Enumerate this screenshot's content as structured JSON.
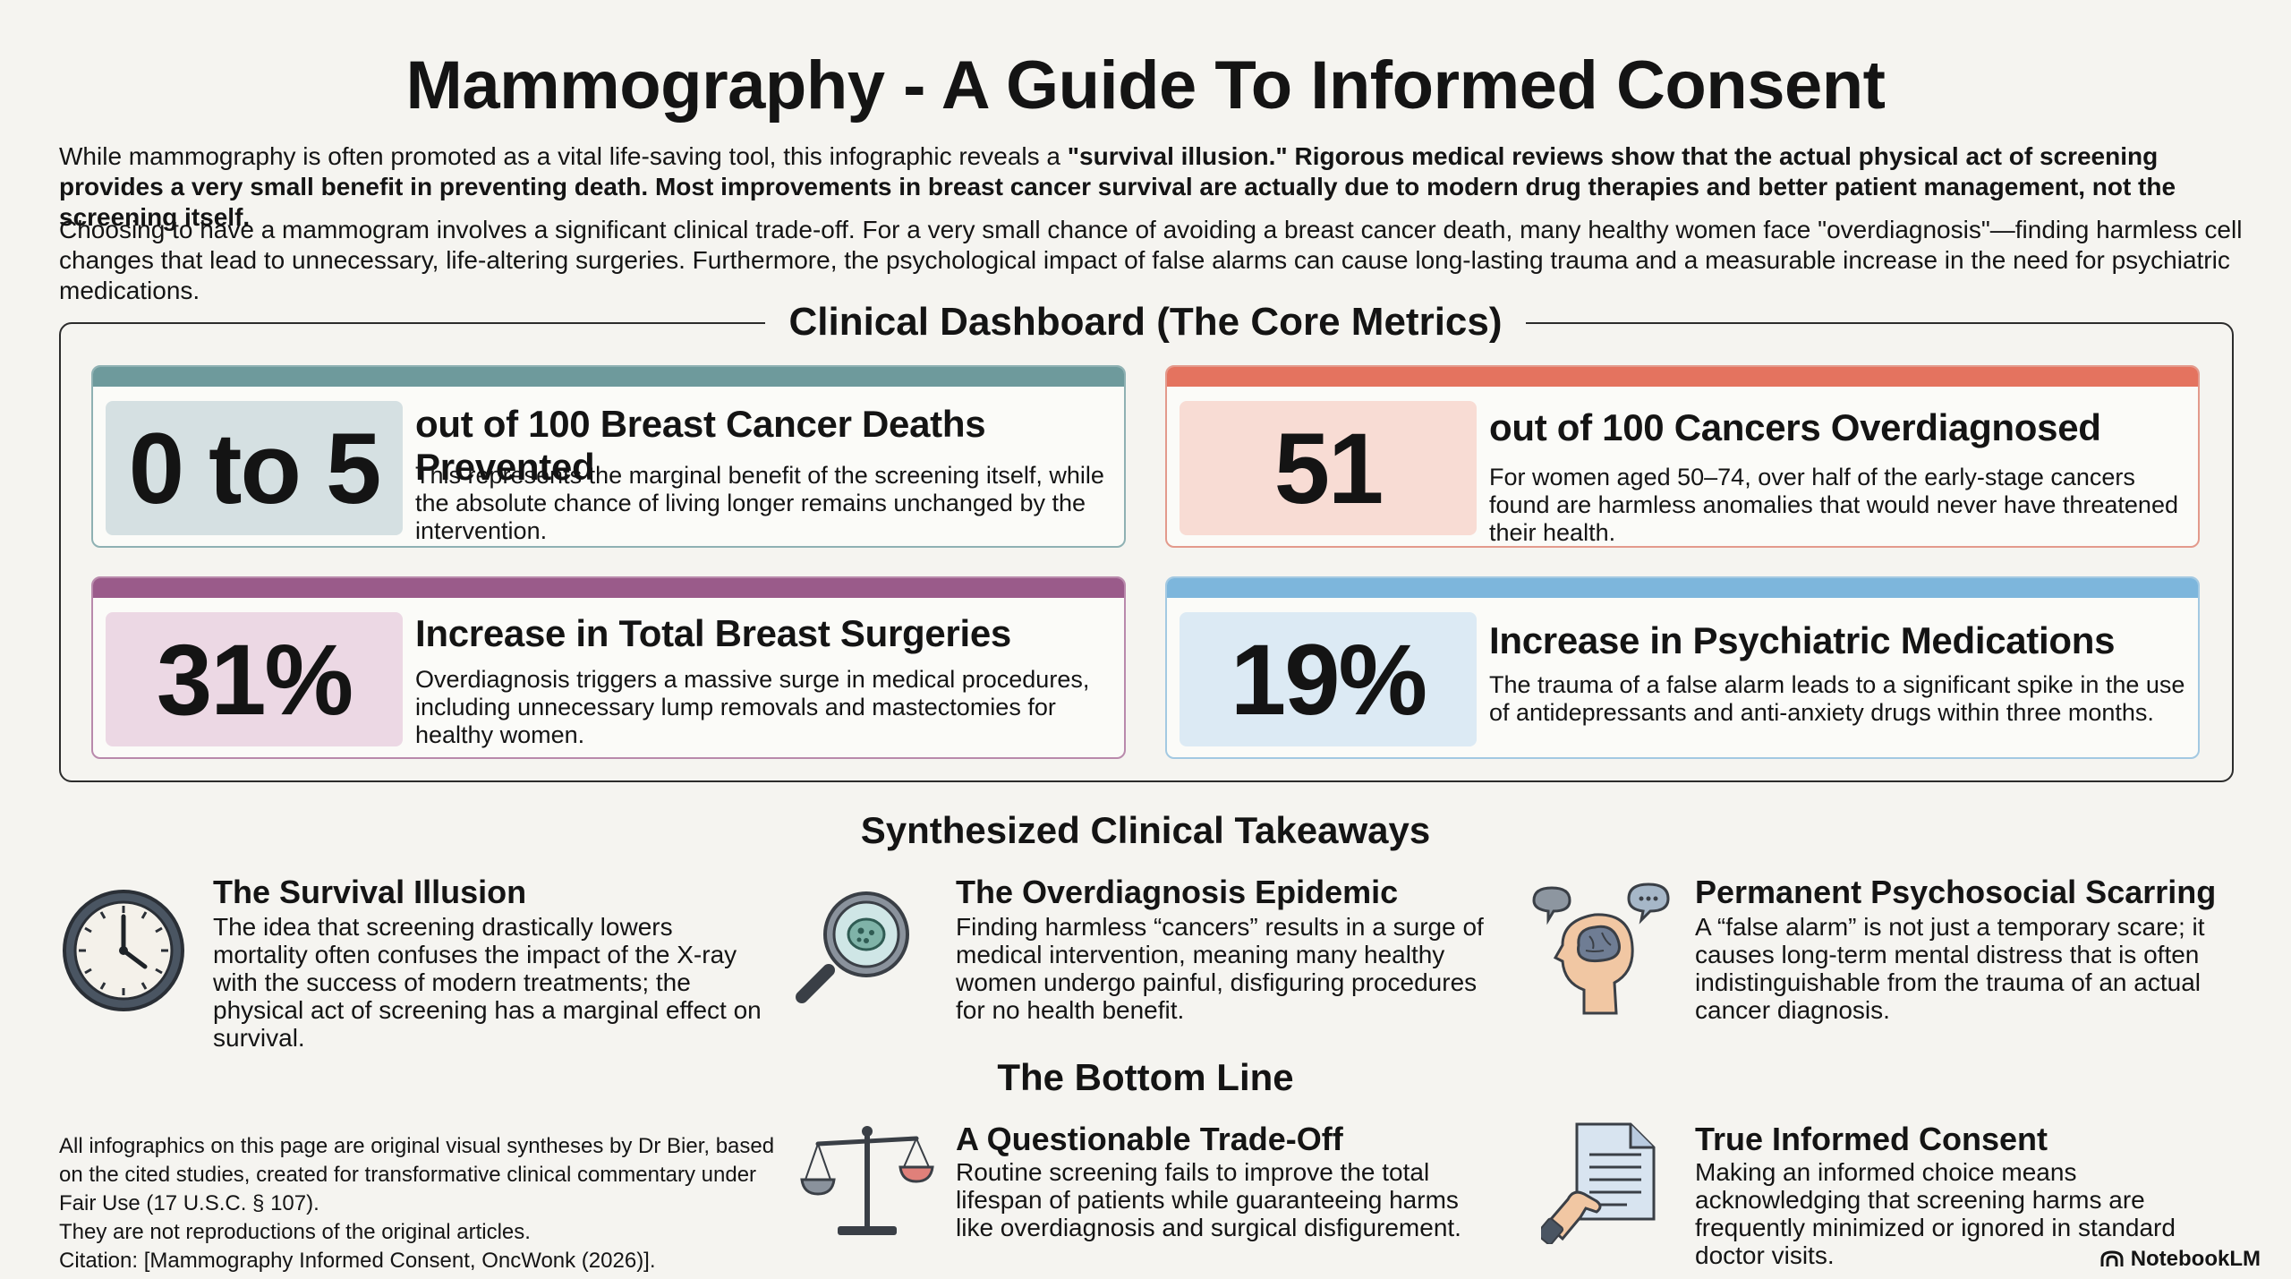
{
  "header": {
    "title": "Mammography - A Guide To Informed Consent",
    "intro1_plain": "While mammography is often promoted as a vital life-saving tool, this infographic reveals a ",
    "intro1_bold": "\"survival illusion.\" Rigorous medical reviews show that the actual physical act of screening provides a very small benefit in preventing death. Most improvements in breast cancer survival are actually due to modern drug therapies and better patient management, not the screening itself.",
    "intro2": "Choosing to have a mammogram involves a significant clinical trade-off. For a very small chance of avoiding a breast cancer death, many healthy women face \"overdiagnosis\"—finding harmless cell changes that lead to unnecessary, life-altering surgeries. Furthermore, the psychological impact of false alarms can cause long-lasting trauma and a measurable increase in the need for psychiatric medications."
  },
  "dashboard": {
    "title": "Clinical Dashboard (The Core Metrics)",
    "cards": [
      {
        "metric": "0 to 5",
        "title": "out of 100 Breast Cancer Deaths Prevented",
        "desc": "This represents the marginal benefit of the screening itself, while the absolute chance of living longer remains unchanged by the intervention.",
        "bar_color": "#6e9a9c",
        "metric_bg": "#d5e0e2",
        "border_color": "#8fb1b3"
      },
      {
        "metric": "51",
        "title": "out of 100 Cancers Overdiagnosed",
        "desc": "For women aged 50–74, over half of the early-stage cancers found are harmless anomalies that would never have threatened their health.",
        "bar_color": "#e4735f",
        "metric_bg": "#f8dcd4",
        "border_color": "#e39a8c"
      },
      {
        "metric": "31%",
        "title": "Increase in Total Breast Surgeries",
        "desc": "Overdiagnosis triggers a massive surge in medical procedures, including unnecessary lump removals and mastectomies for healthy women.",
        "bar_color": "#9a5b8a",
        "metric_bg": "#ecd8e4",
        "border_color": "#b98aac"
      },
      {
        "metric": "19%",
        "title": "Increase in Psychiatric Medications",
        "desc": "The trauma of a false alarm leads to a significant spike in the use of antidepressants and anti-anxiety drugs within three months.",
        "bar_color": "#7db6dc",
        "metric_bg": "#dceaf4",
        "border_color": "#a3c9e2"
      }
    ]
  },
  "takeaways": {
    "title": "Synthesized Clinical Takeaways",
    "items": [
      {
        "icon": "clock-icon",
        "title": "The Survival Illusion",
        "desc": "The idea that screening drastically lowers mortality often confuses the impact of the X-ray with the success of modern treatments; the physical act of screening has a marginal effect on survival."
      },
      {
        "icon": "magnifier-icon",
        "title": "The Overdiagnosis Epidemic",
        "desc": "Finding harmless “cancers” results in a surge of medical intervention, meaning many healthy women undergo painful, disfiguring procedures for no health benefit."
      },
      {
        "icon": "head-brain-icon",
        "title": "Permanent Psychosocial Scarring",
        "desc": "A “false alarm” is not just a temporary scare; it causes long-term mental distress that is often indistinguishable from the trauma of an actual cancer diagnosis."
      }
    ]
  },
  "bottom_line": {
    "title": "The Bottom Line",
    "items": [
      {
        "icon": "balance-scale-icon",
        "title": "A Questionable Trade-Off",
        "desc": "Routine screening fails to improve the total lifespan of patients while guaranteeing harms like overdiagnosis and surgical disfigurement."
      },
      {
        "icon": "document-hand-icon",
        "title": "True Informed Consent",
        "desc": "Making an informed choice means acknowledging that screening harms are frequently minimized or ignored in standard doctor visits."
      }
    ]
  },
  "footer": {
    "line1": "All infographics on this page are original visual syntheses by Dr Bier, based on the cited studies, created for transformative clinical commentary under Fair Use (17 U.S.C. § 107).",
    "line2": "They are not reproductions of the original articles.",
    "line3": "Citation: [Mammography Informed Consent, OncWonk (2026)].",
    "brand": "NotebookLM"
  }
}
